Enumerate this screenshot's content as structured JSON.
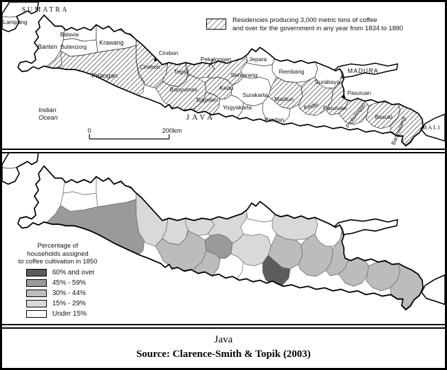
{
  "top_map": {
    "legend": {
      "swatch_meaning": "hatched-area",
      "lines": [
        "Residencies producing 3,000 metric tons of coffee",
        "and over for the government in any year from 1834 to 1880"
      ]
    },
    "sea_labels": {
      "sumatra": "SUMATRA",
      "lampung": "Lampung",
      "indian_ocean_line1": "Indian",
      "indian_ocean_line2": "Ocean",
      "java": "JAVA",
      "madura": "MADURA",
      "bali": "BALI"
    },
    "cities": [
      {
        "id": "cirebon",
        "name": "Cirebon"
      },
      {
        "id": "pasuruan",
        "name": "Pasuruan"
      }
    ],
    "scale_bar": {
      "start": "0",
      "end": "200km"
    }
  },
  "regions": [
    {
      "id": "banten",
      "name": "Banten",
      "hatched": false,
      "category_1850": "under15"
    },
    {
      "id": "batavia",
      "name": "Batavia",
      "hatched": false,
      "category_1850": "under15"
    },
    {
      "id": "buitenzorg",
      "name": "Buitenzorg",
      "hatched": false,
      "category_1850": "under15"
    },
    {
      "id": "krawang",
      "name": "Krawang",
      "hatched": false,
      "category_1850": "under15"
    },
    {
      "id": "priangan",
      "name": "Priangan",
      "hatched": true,
      "category_1850": "45to59"
    },
    {
      "id": "cirebon",
      "name": "Cirebon",
      "hatched": true,
      "category_1850": "15to29"
    },
    {
      "id": "tegal",
      "name": "Tegal",
      "hatched": true,
      "category_1850": "15to29"
    },
    {
      "id": "pekalongan",
      "name": "Pekalongan",
      "hatched": true,
      "category_1850": "15to29"
    },
    {
      "id": "banyumas",
      "name": "Banyumas",
      "hatched": true,
      "category_1850": "30to44"
    },
    {
      "id": "kedu",
      "name": "Kedu",
      "hatched": true,
      "category_1850": "45to59"
    },
    {
      "id": "bagelen",
      "name": "Bagelen",
      "hatched": true,
      "category_1850": "30to44"
    },
    {
      "id": "yogyakarta",
      "name": "Yogyakarta",
      "hatched": false,
      "category_1850": "under15"
    },
    {
      "id": "semarang",
      "name": "Semarang",
      "hatched": true,
      "category_1850": "15to29"
    },
    {
      "id": "jepara",
      "name": "Jepara",
      "hatched": false,
      "category_1850": "under15"
    },
    {
      "id": "surakarta",
      "name": "Surakarta",
      "hatched": false,
      "category_1850": "15to29"
    },
    {
      "id": "rembang",
      "name": "Rembang",
      "hatched": false,
      "category_1850": "15to29"
    },
    {
      "id": "madiun",
      "name": "Madiun",
      "hatched": true,
      "category_1850": "30to44"
    },
    {
      "id": "pacitan",
      "name": "Pacitan",
      "hatched": false,
      "category_1850": "60plus"
    },
    {
      "id": "kediri",
      "name": "Kediri",
      "hatched": true,
      "category_1850": "30to44"
    },
    {
      "id": "surabaya",
      "name": "Surabaya",
      "hatched": false,
      "category_1850": "under15"
    },
    {
      "id": "pasuruan",
      "name": "Pasuruan",
      "hatched": true,
      "category_1850": "30to44"
    },
    {
      "id": "probolinggo",
      "name": "Probolinggo",
      "hatched": true,
      "category_1850": "30to44"
    },
    {
      "id": "besuki",
      "name": "Besuki",
      "hatched": true,
      "category_1850": "30to44"
    },
    {
      "id": "banyuwangi",
      "name": "Banyuwangi",
      "hatched": true,
      "category_1850": "30to44"
    }
  ],
  "bottom_map": {
    "legend": {
      "title_lines": [
        "Percentage of",
        "households assigned",
        "to coffee cultivation in 1850"
      ],
      "items": [
        {
          "key": "60plus",
          "label": "60% and over",
          "color": "#5c5c5c"
        },
        {
          "key": "45to59",
          "label": "45% - 59%",
          "color": "#9a9a9a"
        },
        {
          "key": "30to44",
          "label": "30% - 44%",
          "color": "#bcbcbc"
        },
        {
          "key": "15to29",
          "label": "15% - 29%",
          "color": "#d9d9d9"
        },
        {
          "key": "under15",
          "label": "Under 15%",
          "color": "#ffffff"
        }
      ]
    }
  },
  "caption": {
    "title": "Java",
    "source": "Source: Clarence-Smith & Topik (2003)"
  }
}
